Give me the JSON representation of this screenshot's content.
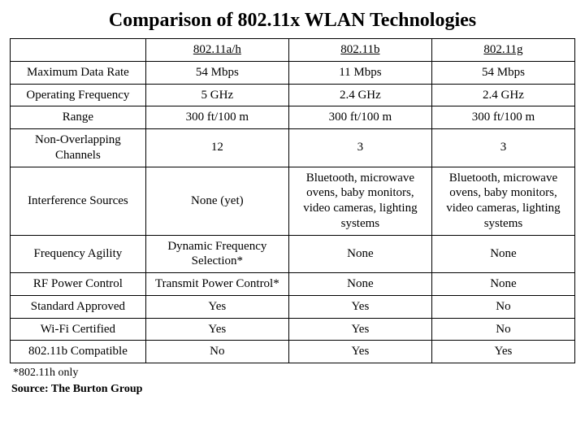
{
  "title": "Comparison of 802.11x WLAN Technologies",
  "columns": [
    "802.11a/h",
    "802.11b",
    "802.11g"
  ],
  "rows": [
    {
      "label": "Maximum Data Rate",
      "cells": [
        "54 Mbps",
        "11 Mbps",
        "54 Mbps"
      ]
    },
    {
      "label": "Operating Frequency",
      "cells": [
        "5 GHz",
        "2.4 GHz",
        "2.4 GHz"
      ]
    },
    {
      "label": "Range",
      "cells": [
        "300 ft/100 m",
        "300 ft/100 m",
        "300 ft/100 m"
      ]
    },
    {
      "label": "Non-Overlapping Channels",
      "cells": [
        "12",
        "3",
        "3"
      ]
    },
    {
      "label": "Interference Sources",
      "cells": [
        "None (yet)",
        "Bluetooth, microwave ovens, baby monitors, video cameras, lighting systems",
        "Bluetooth, microwave ovens, baby monitors, video cameras, lighting systems"
      ]
    },
    {
      "label": "Frequency Agility",
      "cells": [
        "Dynamic Frequency Selection*",
        "None",
        "None"
      ]
    },
    {
      "label": "RF Power Control",
      "cells": [
        "Transmit Power Control*",
        "None",
        "None"
      ]
    },
    {
      "label": "Standard Approved",
      "cells": [
        "Yes",
        "Yes",
        "No"
      ]
    },
    {
      "label": "Wi-Fi Certified",
      "cells": [
        "Yes",
        "Yes",
        "No"
      ]
    },
    {
      "label": "802.11b Compatible",
      "cells": [
        "No",
        "Yes",
        "Yes"
      ]
    }
  ],
  "footnote": "*802.11h only",
  "source": "Source: The Burton Group",
  "style": {
    "type": "table",
    "background_color": "#ffffff",
    "text_color": "#000000",
    "border_color": "#000000",
    "font_family": "Times New Roman",
    "title_fontsize_pt": 18,
    "cell_fontsize_pt": 11,
    "footnote_fontsize_pt": 10,
    "source_fontsize_pt": 10,
    "column_widths_pct": [
      24,
      25.33,
      25.33,
      25.33
    ],
    "header_underline": true,
    "cell_align": "center"
  }
}
